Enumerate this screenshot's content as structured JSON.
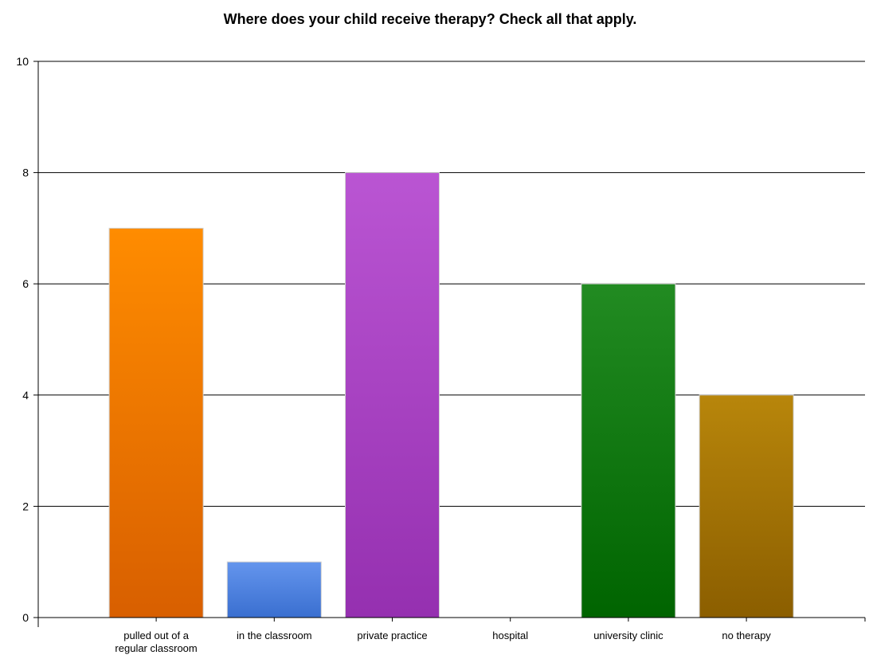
{
  "chart_data": {
    "type": "bar",
    "title": "Where does your child receive therapy?  Check all that apply.",
    "xlabel": "",
    "ylabel": "",
    "categories": [
      "pulled out of a regular classroom",
      "in the classroom",
      "private practice",
      "hospital",
      "university clinic",
      "no therapy"
    ],
    "category_lines": [
      [
        "pulled out of a",
        "regular classroom"
      ],
      [
        "in the classroom"
      ],
      [
        "private practice"
      ],
      [
        "hospital"
      ],
      [
        "university clinic"
      ],
      [
        "no therapy"
      ]
    ],
    "values": [
      7,
      1,
      8,
      0,
      6,
      4
    ],
    "ylim": [
      0,
      10
    ],
    "yticks": [
      0,
      2,
      4,
      6,
      8,
      10
    ],
    "grid": true,
    "legend": "none",
    "colors": [
      [
        "#ff8c00",
        "#d85f00"
      ],
      [
        "#6495ed",
        "#3a6fd0"
      ],
      [
        "#ba55d3",
        "#9530b0"
      ],
      [
        "#999999",
        "#777777"
      ],
      [
        "#228b22",
        "#006400"
      ],
      [
        "#b8860b",
        "#8b5e00"
      ]
    ]
  }
}
